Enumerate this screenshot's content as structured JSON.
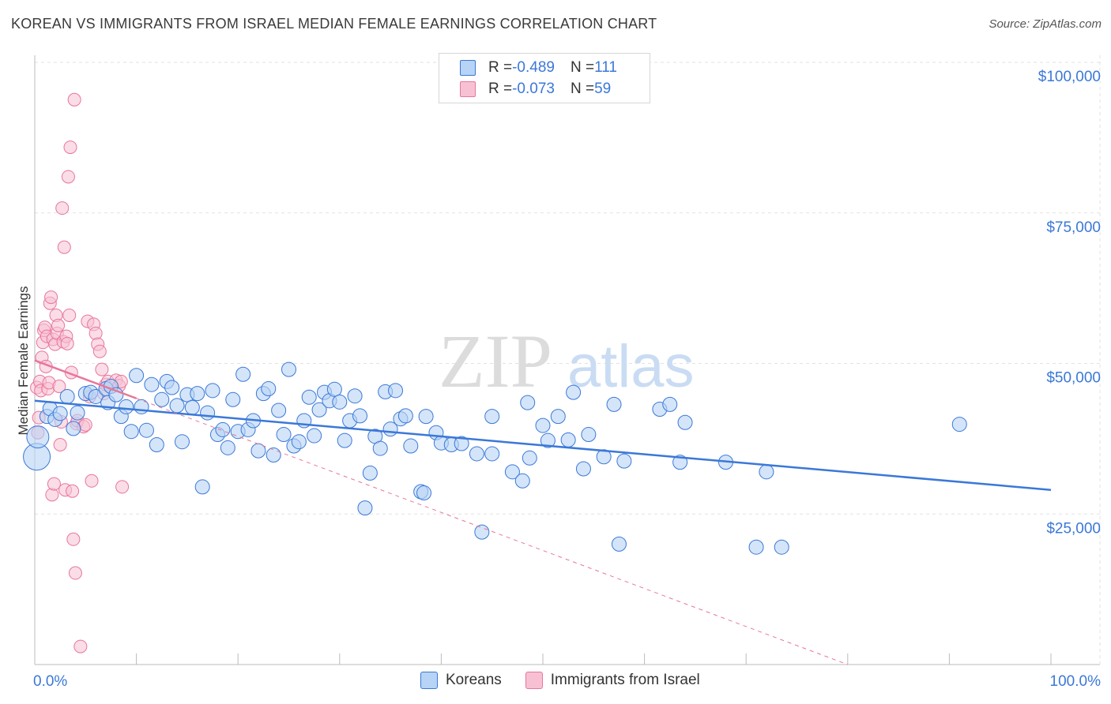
{
  "title": "KOREAN VS IMMIGRANTS FROM ISRAEL MEDIAN FEMALE EARNINGS CORRELATION CHART",
  "source": "Source: ZipAtlas.com",
  "watermark": {
    "zip": "ZIP",
    "atlas": "atlas"
  },
  "colors": {
    "blue": "#3b78d8",
    "blue_fill": "#b7d3f5",
    "pink": "#e8769a",
    "pink_fill": "#f7c1d3",
    "grid": "#e2e2e2"
  },
  "legend": {
    "rows": [
      {
        "r_label": "R = ",
        "r_value": "-0.489",
        "n_label": "N = ",
        "n_value": "111"
      },
      {
        "r_label": "R = ",
        "r_value": "-0.073",
        "n_label": "N = ",
        "n_value": "59"
      }
    ]
  },
  "bottom_legend": [
    "Koreans",
    "Immigrants from Israel"
  ],
  "chart_data": {
    "type": "scatter",
    "ylabel": "Median Female Earnings",
    "xlim": [
      0,
      100
    ],
    "ylim": [
      0,
      100000
    ],
    "x_tick_labels": [
      {
        "value": 0,
        "label": "0.0%"
      },
      {
        "value": 100,
        "label": "100.0%"
      }
    ],
    "y_ticks": [
      {
        "value": 25000,
        "label": "$25,000"
      },
      {
        "value": 50000,
        "label": "$50,000"
      },
      {
        "value": 75000,
        "label": "$75,000"
      },
      {
        "value": 100000,
        "label": "$100,000"
      }
    ],
    "series": [
      {
        "name": "Koreans",
        "r": -0.489,
        "n": 111,
        "trend": {
          "x0": 0,
          "y0": 43800,
          "x1": 100,
          "y1": 29000
        },
        "points": [
          [
            0.2,
            34500
          ],
          [
            0.3,
            37800
          ],
          [
            1.2,
            41200
          ],
          [
            1.5,
            42500
          ],
          [
            2.0,
            40700
          ],
          [
            2.5,
            41700
          ],
          [
            3.2,
            44500
          ],
          [
            3.8,
            39200
          ],
          [
            4.2,
            41800
          ],
          [
            5.0,
            45000
          ],
          [
            5.5,
            45200
          ],
          [
            6.0,
            44500
          ],
          [
            7.0,
            45800
          ],
          [
            7.2,
            43500
          ],
          [
            7.5,
            46200
          ],
          [
            8.0,
            44800
          ],
          [
            8.5,
            41200
          ],
          [
            9.0,
            42800
          ],
          [
            9.5,
            38700
          ],
          [
            10.0,
            48000
          ],
          [
            10.5,
            42800
          ],
          [
            11.0,
            38900
          ],
          [
            11.5,
            46500
          ],
          [
            12.0,
            36500
          ],
          [
            12.5,
            44000
          ],
          [
            13.0,
            47000
          ],
          [
            13.5,
            46000
          ],
          [
            14.0,
            43000
          ],
          [
            14.5,
            37000
          ],
          [
            15.0,
            44800
          ],
          [
            15.5,
            42700
          ],
          [
            16.0,
            45000
          ],
          [
            16.5,
            29500
          ],
          [
            17.0,
            41800
          ],
          [
            17.5,
            45500
          ],
          [
            18.0,
            38200
          ],
          [
            18.5,
            39000
          ],
          [
            19.0,
            36000
          ],
          [
            19.5,
            44000
          ],
          [
            20.0,
            38700
          ],
          [
            20.5,
            48200
          ],
          [
            21.0,
            39000
          ],
          [
            21.5,
            40500
          ],
          [
            22.0,
            35500
          ],
          [
            22.5,
            45000
          ],
          [
            23.0,
            45800
          ],
          [
            23.5,
            34800
          ],
          [
            24.0,
            42200
          ],
          [
            24.5,
            38200
          ],
          [
            25.0,
            49000
          ],
          [
            25.5,
            36300
          ],
          [
            26.0,
            37000
          ],
          [
            26.5,
            40500
          ],
          [
            27.0,
            44400
          ],
          [
            27.5,
            38000
          ],
          [
            28.0,
            42300
          ],
          [
            28.5,
            45200
          ],
          [
            29.0,
            43800
          ],
          [
            29.5,
            45700
          ],
          [
            30.0,
            43600
          ],
          [
            30.5,
            37200
          ],
          [
            31.0,
            40500
          ],
          [
            31.5,
            44600
          ],
          [
            32.0,
            41300
          ],
          [
            32.5,
            26000
          ],
          [
            33.0,
            31800
          ],
          [
            33.5,
            37900
          ],
          [
            34.0,
            35900
          ],
          [
            34.5,
            45300
          ],
          [
            35.0,
            39100
          ],
          [
            35.5,
            45500
          ],
          [
            36.0,
            40800
          ],
          [
            36.5,
            41300
          ],
          [
            37.0,
            36300
          ],
          [
            38.0,
            28700
          ],
          [
            38.3,
            28500
          ],
          [
            38.5,
            41200
          ],
          [
            39.5,
            38500
          ],
          [
            40.0,
            36800
          ],
          [
            41.0,
            36500
          ],
          [
            42.0,
            36700
          ],
          [
            43.5,
            35000
          ],
          [
            44.0,
            22000
          ],
          [
            45.0,
            41200
          ],
          [
            45.0,
            35000
          ],
          [
            47.0,
            32000
          ],
          [
            48.0,
            30500
          ],
          [
            48.5,
            43500
          ],
          [
            48.7,
            34300
          ],
          [
            50.0,
            39700
          ],
          [
            50.5,
            37200
          ],
          [
            51.5,
            41200
          ],
          [
            52.5,
            37300
          ],
          [
            53.0,
            45200
          ],
          [
            54.0,
            32500
          ],
          [
            54.5,
            38200
          ],
          [
            56.0,
            34500
          ],
          [
            57.0,
            43200
          ],
          [
            57.5,
            20000
          ],
          [
            58.0,
            33800
          ],
          [
            61.5,
            42400
          ],
          [
            62.5,
            43200
          ],
          [
            63.5,
            33600
          ],
          [
            64.0,
            40200
          ],
          [
            68.0,
            33600
          ],
          [
            71.0,
            19500
          ],
          [
            72.0,
            32000
          ],
          [
            73.5,
            19500
          ],
          [
            91.0,
            39900
          ]
        ]
      },
      {
        "name": "Immigrants from Israel",
        "r": -0.073,
        "n": 59,
        "trend": {
          "x0": 0,
          "y0": 50500,
          "x1": 10,
          "y1": 44200
        },
        "trend_dashed": {
          "x0": 10,
          "y0": 44200,
          "x1": 80,
          "y1": 0
        },
        "points": [
          [
            0.2,
            46000
          ],
          [
            0.3,
            38500
          ],
          [
            0.4,
            41000
          ],
          [
            0.5,
            47000
          ],
          [
            0.6,
            45500
          ],
          [
            0.7,
            51000
          ],
          [
            0.8,
            53500
          ],
          [
            0.9,
            55500
          ],
          [
            1.0,
            56000
          ],
          [
            1.1,
            49500
          ],
          [
            1.2,
            54500
          ],
          [
            1.3,
            45800
          ],
          [
            1.4,
            46800
          ],
          [
            1.5,
            60000
          ],
          [
            1.6,
            61000
          ],
          [
            1.7,
            28200
          ],
          [
            1.8,
            54000
          ],
          [
            1.9,
            30000
          ],
          [
            2.0,
            53200
          ],
          [
            2.1,
            58000
          ],
          [
            2.2,
            55000
          ],
          [
            2.3,
            56300
          ],
          [
            2.4,
            46200
          ],
          [
            2.5,
            36500
          ],
          [
            2.6,
            40300
          ],
          [
            2.7,
            75800
          ],
          [
            2.8,
            53600
          ],
          [
            2.9,
            69300
          ],
          [
            3.0,
            29000
          ],
          [
            3.1,
            54500
          ],
          [
            3.2,
            53300
          ],
          [
            3.3,
            81000
          ],
          [
            3.4,
            58000
          ],
          [
            3.5,
            85900
          ],
          [
            3.6,
            48500
          ],
          [
            3.7,
            28800
          ],
          [
            3.8,
            20800
          ],
          [
            3.9,
            93800
          ],
          [
            4.0,
            15200
          ],
          [
            4.1,
            40000
          ],
          [
            4.2,
            40500
          ],
          [
            4.5,
            3000
          ],
          [
            4.8,
            39500
          ],
          [
            5.0,
            39800
          ],
          [
            5.2,
            57000
          ],
          [
            5.4,
            44500
          ],
          [
            5.6,
            30500
          ],
          [
            5.8,
            56500
          ],
          [
            6.0,
            55000
          ],
          [
            6.2,
            53200
          ],
          [
            6.4,
            52000
          ],
          [
            6.6,
            49000
          ],
          [
            6.8,
            45000
          ],
          [
            7.0,
            46500
          ],
          [
            7.2,
            47000
          ],
          [
            8.0,
            47200
          ],
          [
            8.3,
            46300
          ],
          [
            8.5,
            47000
          ],
          [
            8.6,
            29500
          ]
        ]
      }
    ]
  }
}
